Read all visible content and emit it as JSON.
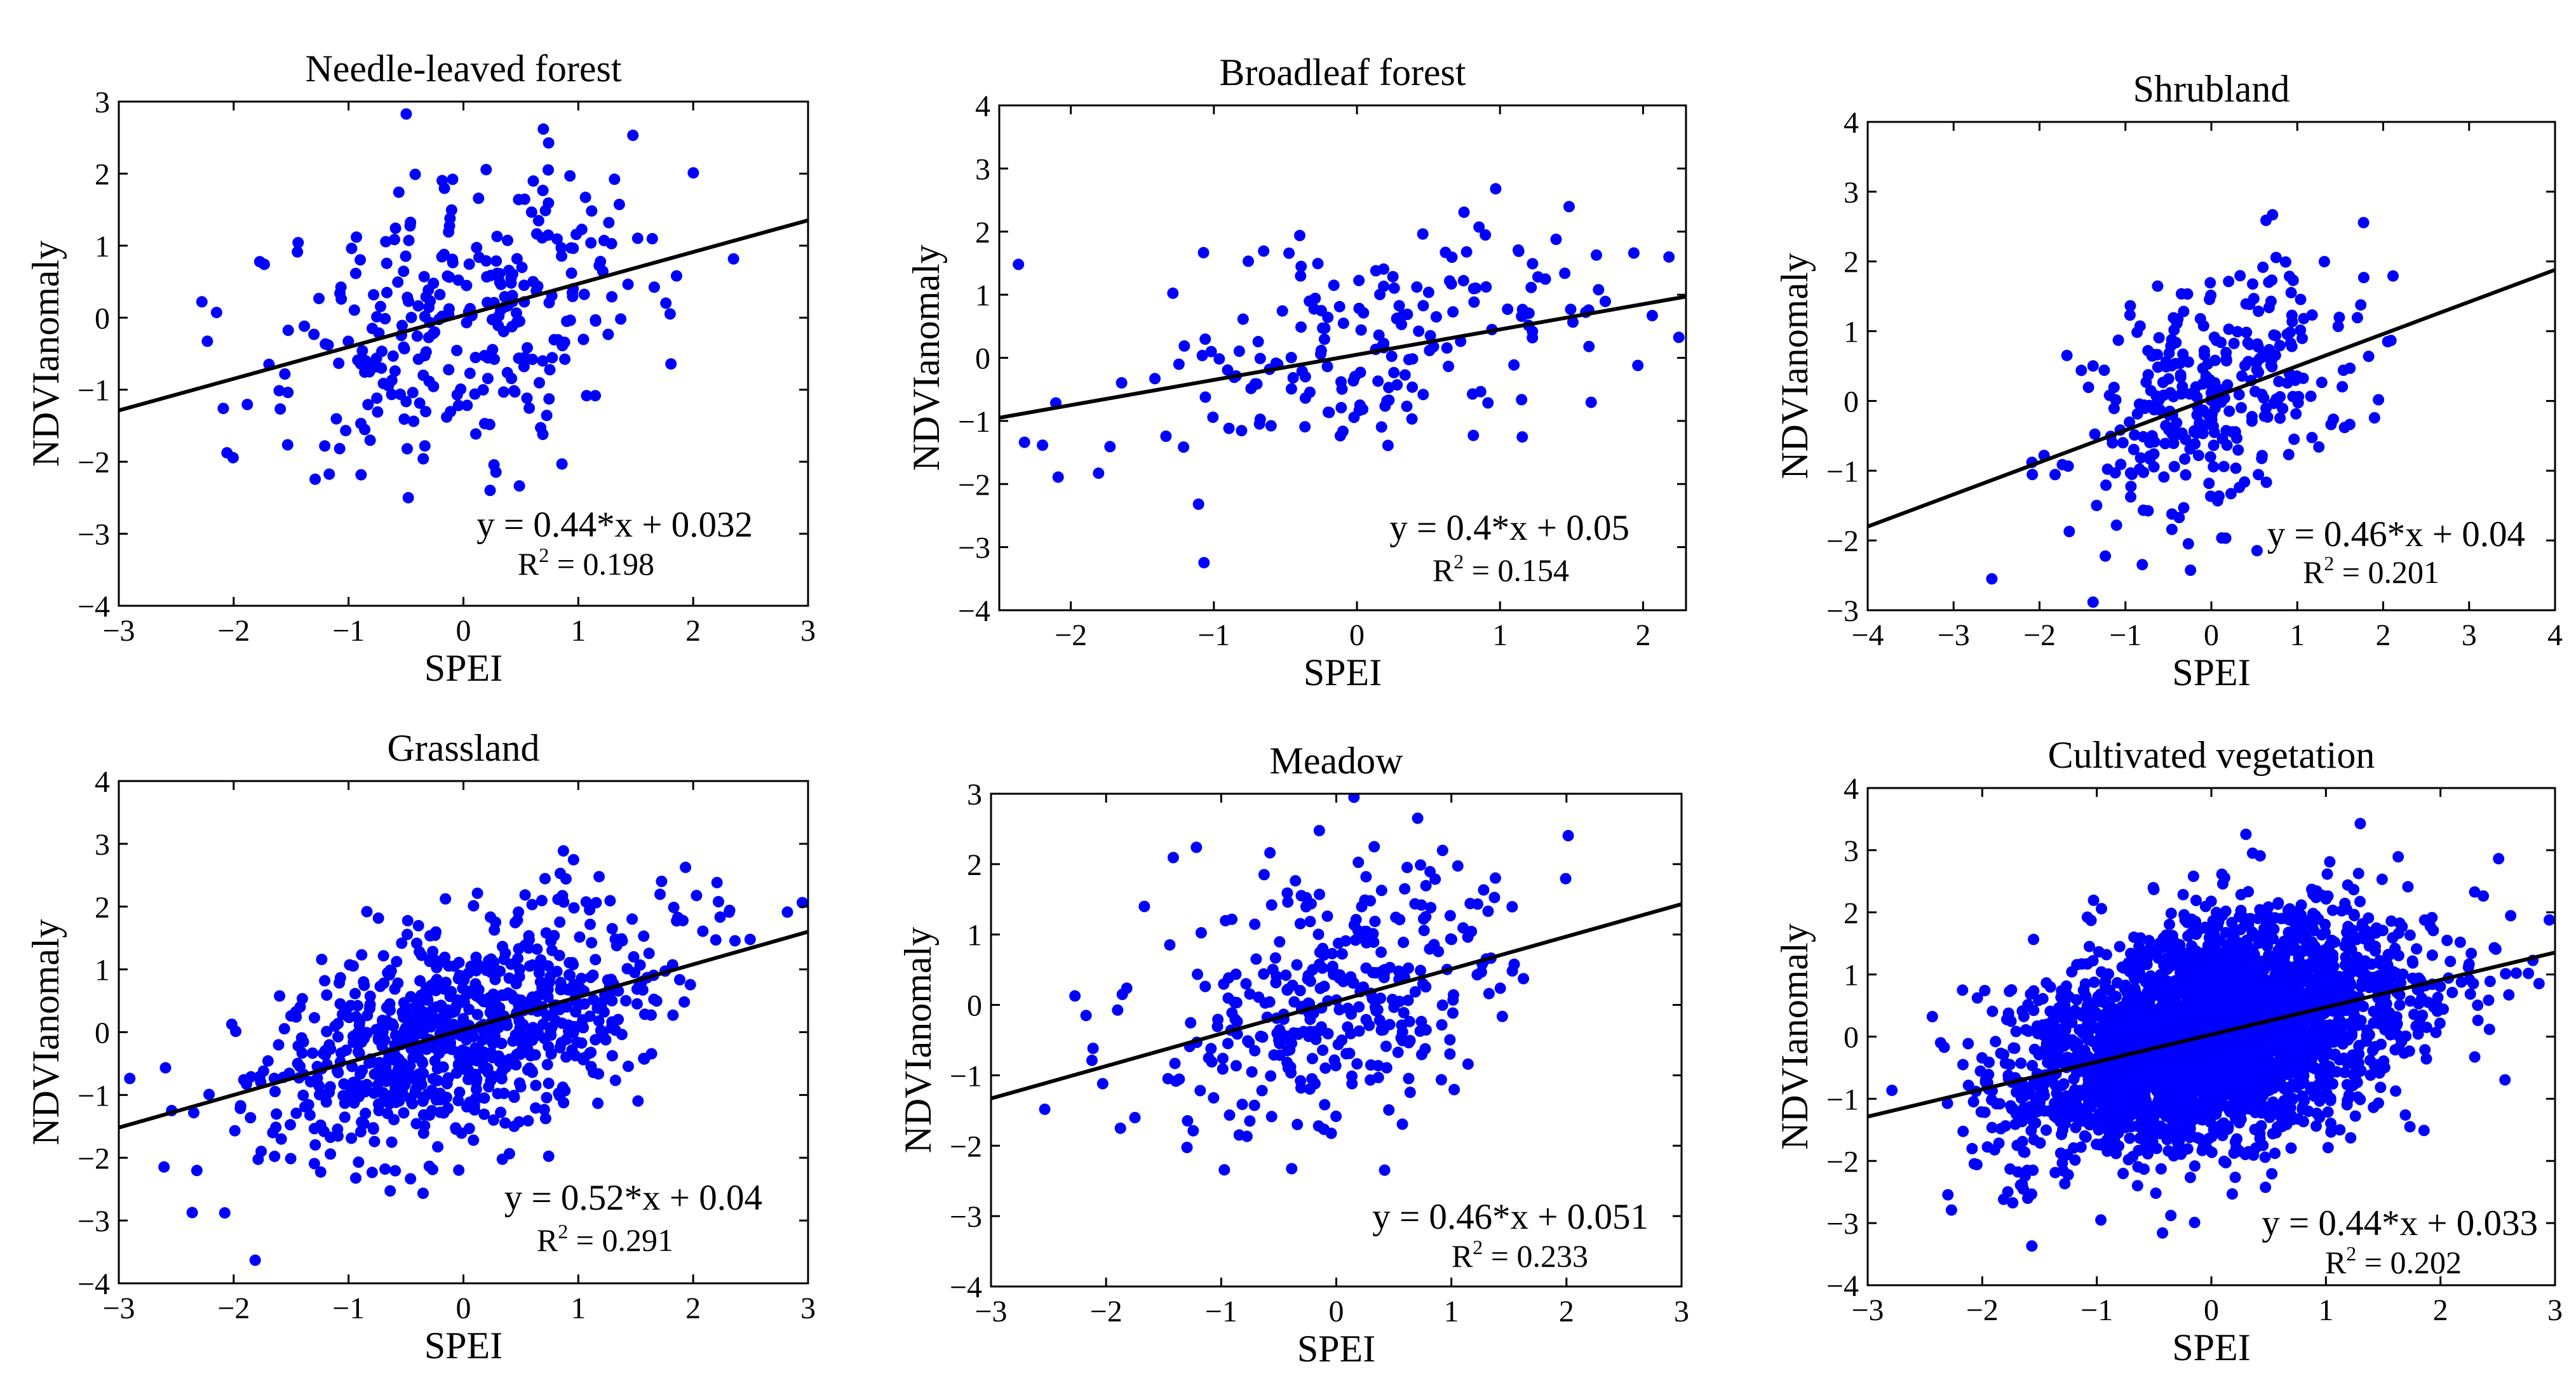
{
  "chart_data": [
    {
      "type": "scatter",
      "title": "Needle-leaved forest",
      "xlabel": "SPEI",
      "ylabel": "NDVIanomaly",
      "xlim": [
        -3,
        3
      ],
      "ylim": [
        -4,
        3
      ],
      "xticks": [
        -3,
        -2,
        -1,
        0,
        1,
        2,
        3
      ],
      "yticks": [
        -4,
        -3,
        -2,
        -1,
        0,
        1,
        2,
        3
      ],
      "fit": {
        "slope": 0.44,
        "intercept": 0.032
      },
      "equation": "y = 0.44*x + 0.032",
      "r2_label": "R",
      "r2_sup": "2",
      "r2_value": " = 0.198",
      "marker_color": "#0000ff",
      "line_color": "#000000",
      "grid": false,
      "n_points": 300,
      "x_sd": 0.9,
      "resid_sd": 1.0
    },
    {
      "type": "scatter",
      "title": "Broadleaf forest",
      "xlabel": "SPEI",
      "ylabel": "NDVIanomaly",
      "xlim": [
        -2.5,
        2.3
      ],
      "ylim": [
        -4,
        4
      ],
      "xticks": [
        -2,
        -1,
        0,
        1,
        2
      ],
      "yticks": [
        -4,
        -3,
        -2,
        -1,
        0,
        1,
        2,
        3,
        4
      ],
      "fit": {
        "slope": 0.4,
        "intercept": 0.05
      },
      "equation": "y = 0.4*x + 0.05",
      "r2_label": "R",
      "r2_sup": "2",
      "r2_value": " = 0.154",
      "marker_color": "#0000ff",
      "line_color": "#000000",
      "grid": false,
      "n_points": 190,
      "x_sd": 0.85,
      "resid_sd": 0.9
    },
    {
      "type": "scatter",
      "title": "Shrubland",
      "xlabel": "SPEI",
      "ylabel": "NDVIanomaly",
      "xlim": [
        -4,
        4
      ],
      "ylim": [
        -3,
        4
      ],
      "xticks": [
        -4,
        -3,
        -2,
        -1,
        0,
        1,
        2,
        3,
        4
      ],
      "yticks": [
        -3,
        -2,
        -1,
        0,
        1,
        2,
        3,
        4
      ],
      "fit": {
        "slope": 0.46,
        "intercept": 0.04
      },
      "equation": "y = 0.46*x + 0.04",
      "r2_label": "R",
      "r2_sup": "2",
      "r2_value": " = 0.201",
      "marker_color": "#0000ff",
      "line_color": "#000000",
      "grid": false,
      "n_points": 320,
      "x_sd": 0.85,
      "resid_sd": 0.9
    },
    {
      "type": "scatter",
      "title": "Grassland",
      "xlabel": "SPEI",
      "ylabel": "NDVIanomaly",
      "xlim": [
        -3,
        3
      ],
      "ylim": [
        -4,
        4
      ],
      "xticks": [
        -3,
        -2,
        -1,
        0,
        1,
        2,
        3
      ],
      "yticks": [
        -4,
        -3,
        -2,
        -1,
        0,
        1,
        2,
        3,
        4
      ],
      "fit": {
        "slope": 0.52,
        "intercept": 0.04
      },
      "equation": "y = 0.52*x + 0.04",
      "r2_label": "R",
      "r2_sup": "2",
      "r2_value": " = 0.291",
      "marker_color": "#0000ff",
      "line_color": "#000000",
      "grid": false,
      "n_points": 850,
      "x_sd": 0.9,
      "resid_sd": 0.85
    },
    {
      "type": "scatter",
      "title": "Meadow",
      "xlabel": "SPEI",
      "ylabel": "NDVIanomaly",
      "xlim": [
        -3,
        3
      ],
      "ylim": [
        -4,
        3
      ],
      "xticks": [
        -3,
        -2,
        -1,
        0,
        1,
        2,
        3
      ],
      "yticks": [
        -4,
        -3,
        -2,
        -1,
        0,
        1,
        2,
        3
      ],
      "fit": {
        "slope": 0.46,
        "intercept": 0.051
      },
      "equation": "y = 0.46*x + 0.051",
      "r2_label": "R",
      "r2_sup": "2",
      "r2_value": " = 0.233",
      "marker_color": "#0000ff",
      "line_color": "#000000",
      "grid": false,
      "n_points": 340,
      "x_sd": 0.85,
      "resid_sd": 0.9
    },
    {
      "type": "scatter",
      "title": "Cultivated vegetation",
      "xlabel": "SPEI",
      "ylabel": "NDVIanomaly",
      "xlim": [
        -3,
        3
      ],
      "ylim": [
        -4,
        4
      ],
      "xticks": [
        -3,
        -2,
        -1,
        0,
        1,
        2,
        3
      ],
      "yticks": [
        -4,
        -3,
        -2,
        -1,
        0,
        1,
        2,
        3,
        4
      ],
      "fit": {
        "slope": 0.44,
        "intercept": 0.033
      },
      "equation": "y = 0.44*x + 0.033",
      "r2_label": "R",
      "r2_sup": "2",
      "r2_value": " = 0.202",
      "marker_color": "#0000ff",
      "line_color": "#000000",
      "grid": false,
      "n_points": 3200,
      "x_sd": 0.85,
      "resid_sd": 0.85
    }
  ]
}
